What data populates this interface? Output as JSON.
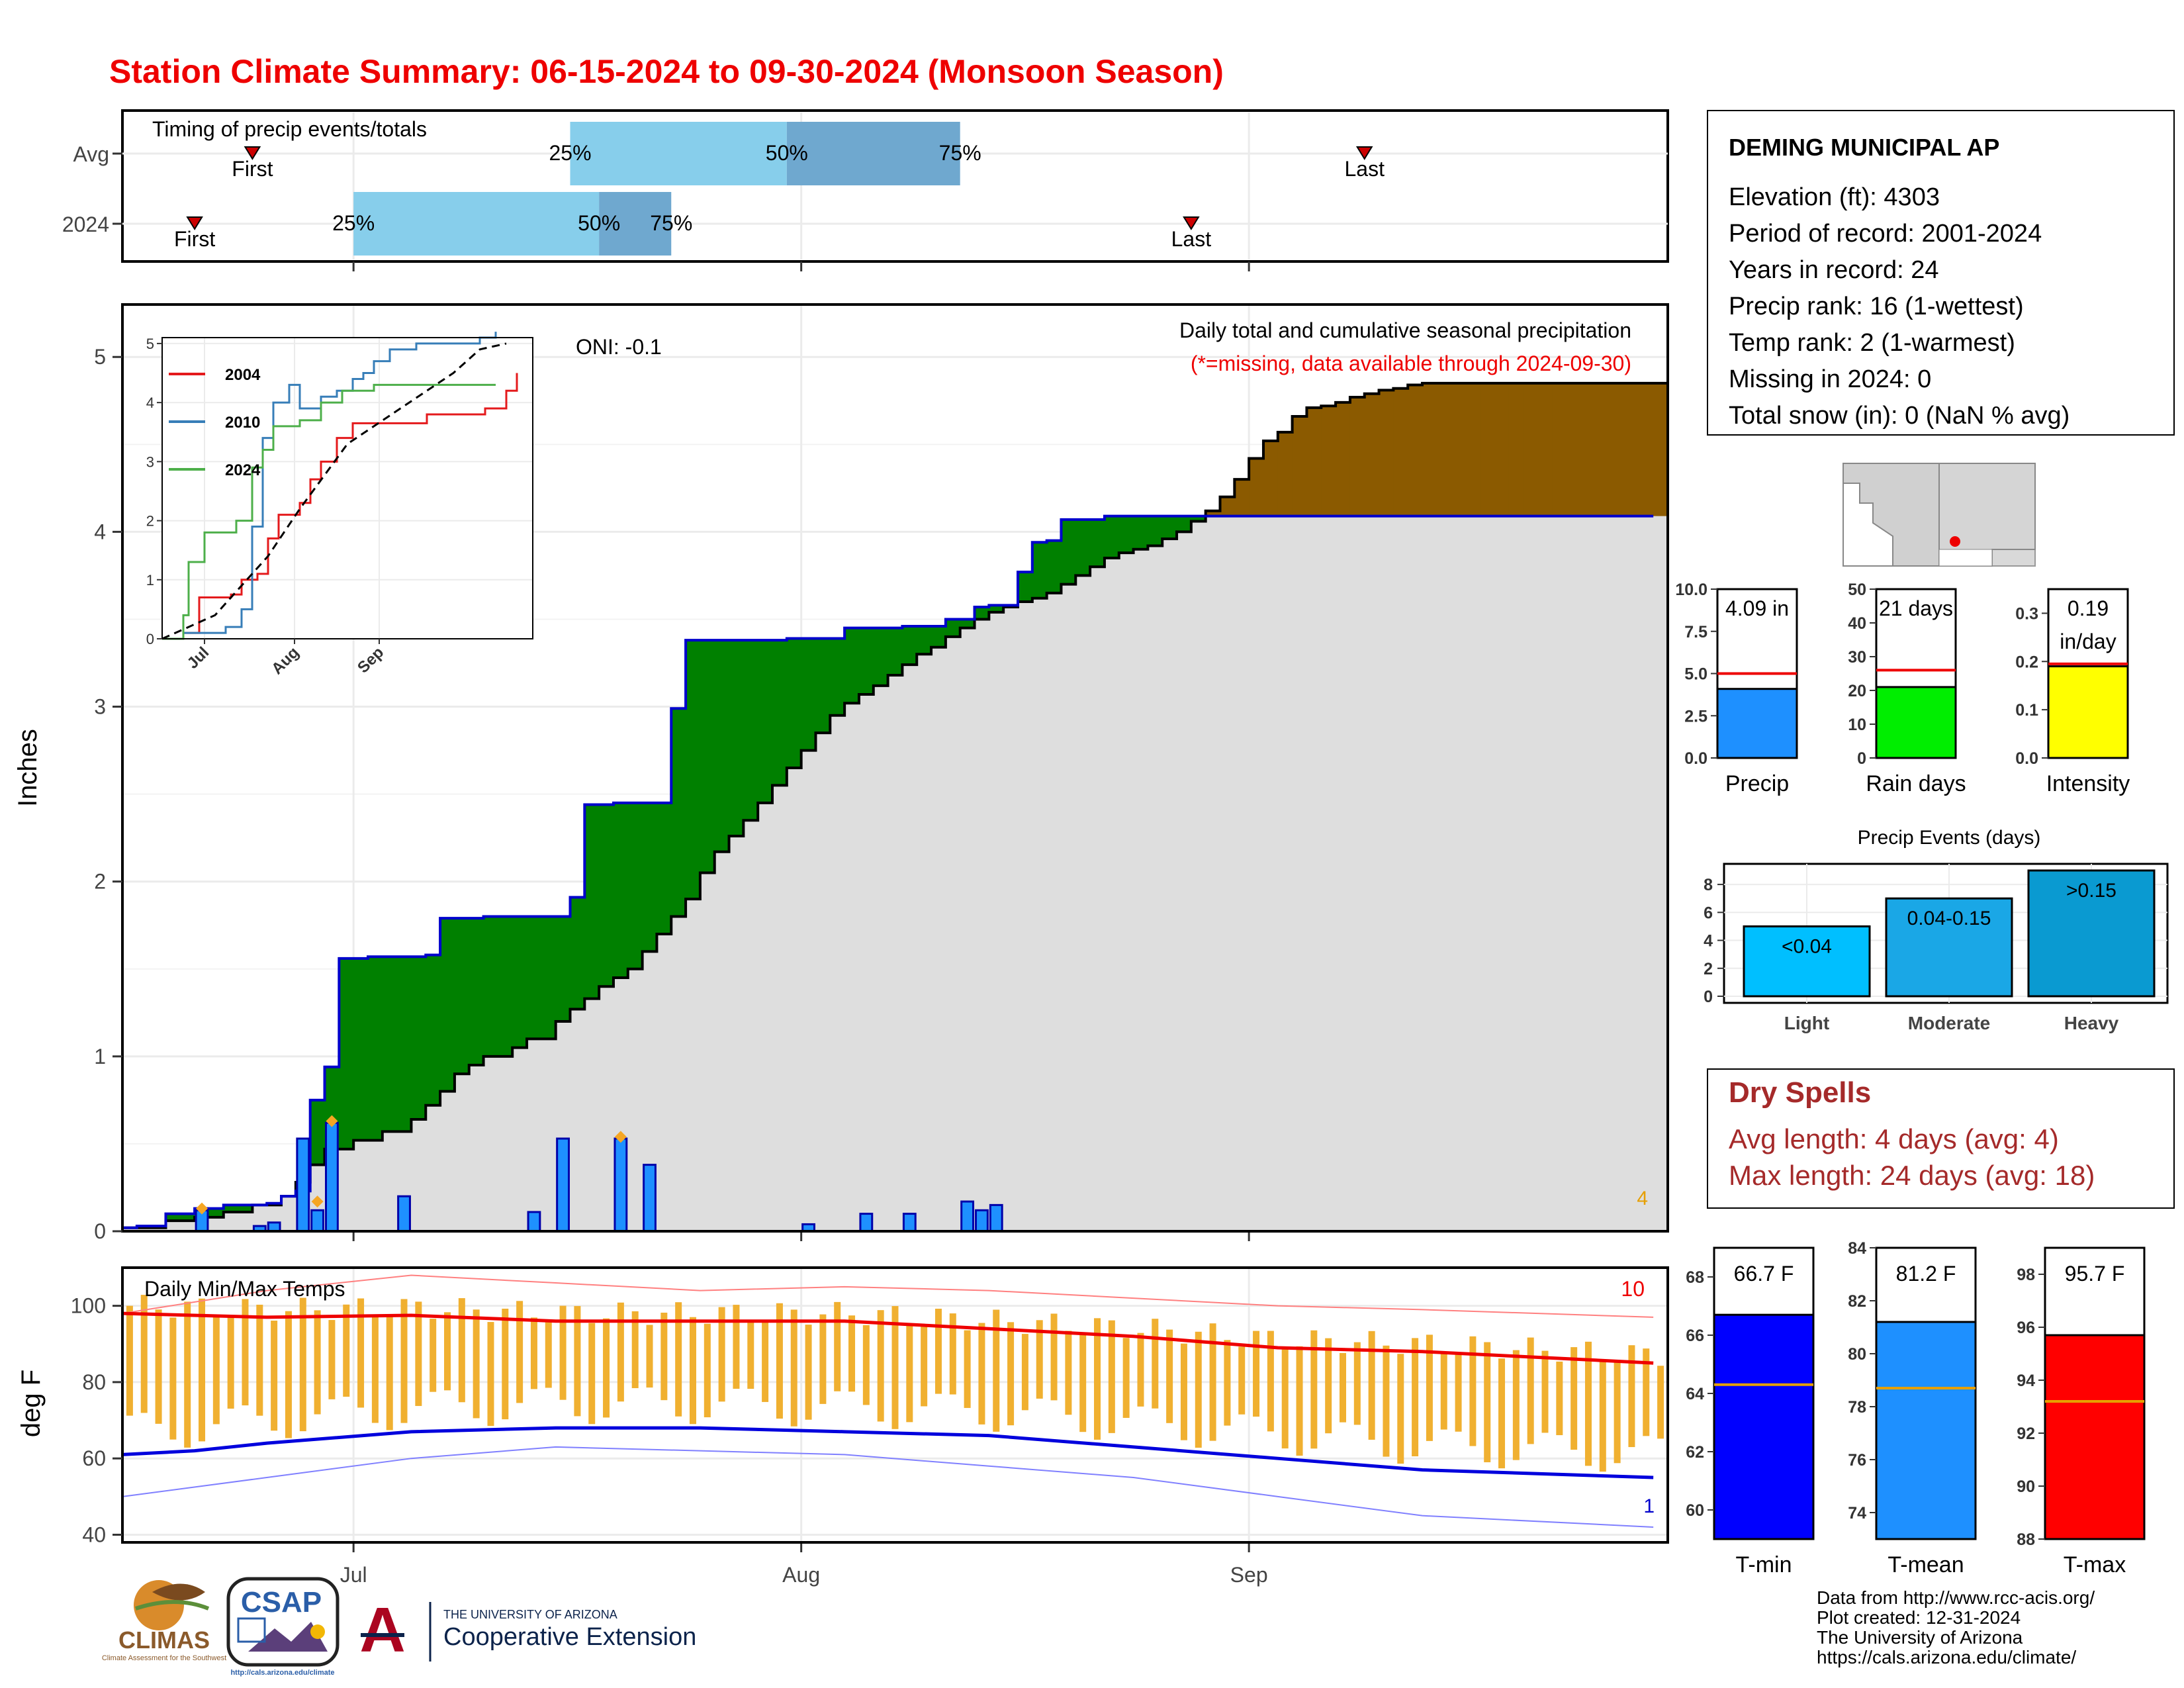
{
  "title": "Station Climate Summary: 06-15-2024 to 09-30-2024 (Monsoon Season)",
  "month_labels": [
    "Jul",
    "Aug",
    "Sep"
  ],
  "timing": {
    "label": "Timing of precip events/totals",
    "rows": [
      {
        "name": "Avg",
        "first_day": 9,
        "p25_day": 31,
        "p50_day": 46,
        "p75_day": 58,
        "last_day": 86
      },
      {
        "name": "2024",
        "first_day": 5,
        "p25_day": 16,
        "p50_day": 33,
        "p75_day": 38,
        "last_day": 74
      }
    ],
    "first_label": "First",
    "last_label": "Last",
    "p25_label": "25%",
    "p50_label": "50%",
    "p75_label": "75%"
  },
  "precip": {
    "ylabel": "Inches",
    "y_ticks": [
      "0",
      "1",
      "2",
      "3",
      "4",
      "5"
    ],
    "ylim": [
      0,
      5.3
    ],
    "header_line1": "Daily total and cumulative seasonal precipitation",
    "header_line2": "(*=missing, data available through 2024-09-30)",
    "oni": "ONI: -0.1",
    "corner_count": "4",
    "cumulative_2024": [
      [
        0,
        0.02
      ],
      [
        1,
        0.03
      ],
      [
        3,
        0.1
      ],
      [
        5,
        0.13
      ],
      [
        7,
        0.15
      ],
      [
        10,
        0.16
      ],
      [
        11,
        0.2
      ],
      [
        12,
        0.23
      ],
      [
        13,
        0.75
      ],
      [
        14,
        0.94
      ],
      [
        15,
        1.56
      ],
      [
        17,
        1.57
      ],
      [
        21,
        1.58
      ],
      [
        22,
        1.79
      ],
      [
        25,
        1.8
      ],
      [
        28,
        1.8
      ],
      [
        31,
        1.91
      ],
      [
        32,
        2.44
      ],
      [
        34,
        2.45
      ],
      [
        36,
        2.45
      ],
      [
        38,
        2.99
      ],
      [
        39,
        3.38
      ],
      [
        46,
        3.39
      ],
      [
        48,
        3.39
      ],
      [
        50,
        3.45
      ],
      [
        54,
        3.46
      ],
      [
        57,
        3.5
      ],
      [
        59,
        3.57
      ],
      [
        60,
        3.58
      ],
      [
        61,
        3.58
      ],
      [
        62,
        3.77
      ],
      [
        63,
        3.94
      ],
      [
        64,
        3.95
      ],
      [
        65,
        4.07
      ],
      [
        68,
        4.09
      ],
      [
        73,
        4.09
      ],
      [
        84,
        4.09
      ]
    ],
    "cumulative_avg": [
      [
        0,
        0.02
      ],
      [
        3,
        0.06
      ],
      [
        5,
        0.08
      ],
      [
        7,
        0.11
      ],
      [
        9,
        0.15
      ],
      [
        11,
        0.2
      ],
      [
        12,
        0.28
      ],
      [
        13,
        0.38
      ],
      [
        14,
        0.47
      ],
      [
        16,
        0.52
      ],
      [
        18,
        0.57
      ],
      [
        20,
        0.64
      ],
      [
        21,
        0.72
      ],
      [
        22,
        0.8
      ],
      [
        23,
        0.9
      ],
      [
        24,
        0.95
      ],
      [
        25,
        1.0
      ],
      [
        27,
        1.05
      ],
      [
        28,
        1.1
      ],
      [
        30,
        1.2
      ],
      [
        31,
        1.27
      ],
      [
        32,
        1.33
      ],
      [
        33,
        1.4
      ],
      [
        34,
        1.45
      ],
      [
        35,
        1.5
      ],
      [
        36,
        1.6
      ],
      [
        37,
        1.7
      ],
      [
        38,
        1.8
      ],
      [
        39,
        1.9
      ],
      [
        40,
        2.05
      ],
      [
        41,
        2.17
      ],
      [
        42,
        2.26
      ],
      [
        43,
        2.35
      ],
      [
        44,
        2.45
      ],
      [
        45,
        2.55
      ],
      [
        46,
        2.65
      ],
      [
        47,
        2.75
      ],
      [
        48,
        2.85
      ],
      [
        49,
        2.95
      ],
      [
        50,
        3.02
      ],
      [
        51,
        3.07
      ],
      [
        52,
        3.12
      ],
      [
        53,
        3.18
      ],
      [
        54,
        3.24
      ],
      [
        55,
        3.3
      ],
      [
        56,
        3.34
      ],
      [
        57,
        3.4
      ],
      [
        58,
        3.45
      ],
      [
        59,
        3.5
      ],
      [
        60,
        3.54
      ],
      [
        61,
        3.57
      ],
      [
        62,
        3.6
      ],
      [
        63,
        3.62
      ],
      [
        64,
        3.65
      ],
      [
        65,
        3.7
      ],
      [
        66,
        3.75
      ],
      [
        67,
        3.8
      ],
      [
        68,
        3.85
      ],
      [
        69,
        3.88
      ],
      [
        70,
        3.9
      ],
      [
        71,
        3.92
      ],
      [
        72,
        3.96
      ],
      [
        73,
        4.0
      ],
      [
        74,
        4.06
      ],
      [
        75,
        4.12
      ],
      [
        76,
        4.2
      ],
      [
        77,
        4.3
      ],
      [
        78,
        4.42
      ],
      [
        79,
        4.52
      ],
      [
        80,
        4.57
      ],
      [
        81,
        4.66
      ],
      [
        82,
        4.71
      ],
      [
        83,
        4.72
      ],
      [
        84,
        4.74
      ],
      [
        85,
        4.77
      ],
      [
        86,
        4.79
      ],
      [
        87,
        4.81
      ],
      [
        88,
        4.82
      ],
      [
        89,
        4.84
      ],
      [
        90,
        4.85
      ]
    ],
    "daily_2024": [
      [
        5,
        0.12
      ],
      [
        9,
        0.03
      ],
      [
        10,
        0.05
      ],
      [
        12,
        0.53
      ],
      [
        13,
        0.12
      ],
      [
        14,
        0.62
      ],
      [
        19,
        0.2
      ],
      [
        28,
        0.11
      ],
      [
        30,
        0.53
      ],
      [
        34,
        0.53
      ],
      [
        36,
        0.38
      ],
      [
        47,
        0.04
      ],
      [
        51,
        0.1
      ],
      [
        54,
        0.1
      ],
      [
        58,
        0.17
      ],
      [
        59,
        0.12
      ],
      [
        60,
        0.15
      ]
    ],
    "missing_diamonds": [
      [
        5,
        0.13
      ],
      [
        13,
        0.17
      ],
      [
        14,
        0.63
      ],
      [
        34,
        0.54
      ]
    ]
  },
  "inset": {
    "y_ticks": [
      "0",
      "1",
      "2",
      "3",
      "4",
      "5"
    ],
    "x_labels": [
      "Jul",
      "Aug",
      "Sep"
    ],
    "series": [
      {
        "name": "2004",
        "color": "#e41a1c",
        "points": [
          [
            0,
            0
          ],
          [
            4,
            0.1
          ],
          [
            7,
            0.7
          ],
          [
            13,
            0.75
          ],
          [
            15,
            1.0
          ],
          [
            18,
            1.1
          ],
          [
            20,
            1.7
          ],
          [
            22,
            2.1
          ],
          [
            26,
            2.3
          ],
          [
            28,
            2.7
          ],
          [
            30,
            3.0
          ],
          [
            33,
            3.4
          ],
          [
            36,
            3.65
          ],
          [
            50,
            3.8
          ],
          [
            61,
            3.9
          ],
          [
            65,
            4.2
          ],
          [
            67,
            4.5
          ]
        ]
      },
      {
        "name": "2010",
        "color": "#377eb8",
        "points": [
          [
            0,
            0
          ],
          [
            4,
            0.1
          ],
          [
            12,
            0.2
          ],
          [
            15,
            0.5
          ],
          [
            17,
            1.9
          ],
          [
            19,
            3.4
          ],
          [
            21,
            4.0
          ],
          [
            24,
            4.3
          ],
          [
            26,
            3.9
          ],
          [
            30,
            4.1
          ],
          [
            33,
            4.2
          ],
          [
            36,
            4.4
          ],
          [
            38,
            4.5
          ],
          [
            40,
            4.7
          ],
          [
            43,
            4.9
          ],
          [
            48,
            5.0
          ],
          [
            60,
            5.1
          ],
          [
            63,
            5.2
          ]
        ]
      },
      {
        "name": "2024",
        "color": "#4daf4a",
        "points": [
          [
            0,
            0
          ],
          [
            4,
            0.4
          ],
          [
            5,
            1.3
          ],
          [
            8,
            1.8
          ],
          [
            14,
            2.0
          ],
          [
            17,
            2.9
          ],
          [
            19,
            3.2
          ],
          [
            21,
            3.6
          ],
          [
            26,
            3.7
          ],
          [
            30,
            4.0
          ],
          [
            34,
            4.2
          ],
          [
            40,
            4.3
          ],
          [
            63,
            4.3
          ]
        ]
      }
    ],
    "avg_points": [
      [
        0,
        0
      ],
      [
        10,
        0.4
      ],
      [
        20,
        1.4
      ],
      [
        26,
        2.2
      ],
      [
        35,
        3.3
      ],
      [
        45,
        3.9
      ],
      [
        55,
        4.5
      ],
      [
        60,
        4.9
      ],
      [
        65,
        5.0
      ]
    ]
  },
  "station": {
    "name": "DEMING MUNICIPAL AP",
    "lines": [
      "Elevation (ft): 4303",
      "Period of record: 2001-2024",
      "Years in record: 24",
      "Precip rank: 16 (1-wettest)",
      "Temp rank: 2 (1-warmest)",
      "Missing in 2024: 0",
      "Total snow (in): 0 (NaN % avg)"
    ]
  },
  "mini_bars": [
    {
      "label": "Precip",
      "value": 4.09,
      "avg": 5.0,
      "display": "4.09 in",
      "display2": "",
      "color": "#1e90ff",
      "ylim": [
        0,
        10
      ],
      "ticks": [
        "0.0",
        "2.5",
        "5.0",
        "7.5",
        "10.0"
      ]
    },
    {
      "label": "Rain days",
      "value": 21,
      "avg": 26,
      "display": "21 days",
      "display2": "",
      "color": "#00ee00",
      "ylim": [
        0,
        50
      ],
      "ticks": [
        "0",
        "10",
        "20",
        "30",
        "40",
        "50"
      ]
    },
    {
      "label": "Intensity",
      "value": 0.19,
      "avg": 0.195,
      "display": "0.19",
      "display2": "in/day",
      "color": "#ffff00",
      "ylim": [
        0,
        0.35
      ],
      "ticks": [
        "0.0",
        "0.1",
        "0.2",
        "0.3"
      ]
    }
  ],
  "events": {
    "title": "Precip Events (days)",
    "y_ticks": [
      "0",
      "2",
      "4",
      "6",
      "8"
    ],
    "ylim": [
      0,
      9
    ],
    "bars": [
      {
        "name": "Light",
        "value": 5,
        "label": "<0.04",
        "color": "#00bfff"
      },
      {
        "name": "Moderate",
        "value": 7,
        "label": "0.04-0.15",
        "color": "#1aa7e6"
      },
      {
        "name": "Heavy",
        "value": 9,
        "label": ">0.15",
        "color": "#0a9ad1"
      }
    ]
  },
  "dry_spells": {
    "title": "Dry Spells",
    "avg": "Avg length: 4 days (avg: 4)",
    "max": "Max length: 24 days (avg: 18)"
  },
  "temps": {
    "label": "Daily Min/Max Temps",
    "ylabel": "deg F",
    "y_ticks": [
      "40",
      "60",
      "80",
      "100"
    ],
    "ylim": [
      38,
      110
    ],
    "count_top": "10",
    "count_bottom": "1",
    "max_avg": [
      [
        0,
        98
      ],
      [
        10,
        97
      ],
      [
        20,
        97.5
      ],
      [
        30,
        96
      ],
      [
        40,
        96
      ],
      [
        50,
        96
      ],
      [
        60,
        94
      ],
      [
        70,
        92
      ],
      [
        80,
        89
      ],
      [
        90,
        88
      ],
      [
        106,
        85
      ]
    ],
    "min_avg": [
      [
        0,
        61
      ],
      [
        5,
        62
      ],
      [
        10,
        64
      ],
      [
        20,
        67
      ],
      [
        30,
        68
      ],
      [
        40,
        68
      ],
      [
        50,
        67
      ],
      [
        60,
        66
      ],
      [
        70,
        63
      ],
      [
        80,
        60
      ],
      [
        90,
        57
      ],
      [
        106,
        55
      ]
    ],
    "rec_max": [
      [
        0,
        98
      ],
      [
        10,
        104
      ],
      [
        20,
        108
      ],
      [
        30,
        106
      ],
      [
        40,
        104
      ],
      [
        50,
        105
      ],
      [
        60,
        104
      ],
      [
        70,
        102
      ],
      [
        80,
        100
      ],
      [
        90,
        99
      ],
      [
        106,
        97
      ]
    ],
    "rec_min": [
      [
        0,
        50
      ],
      [
        10,
        55
      ],
      [
        20,
        60
      ],
      [
        30,
        63
      ],
      [
        40,
        62
      ],
      [
        50,
        61
      ],
      [
        60,
        58
      ],
      [
        70,
        55
      ],
      [
        80,
        50
      ],
      [
        90,
        45
      ],
      [
        106,
        42
      ]
    ]
  },
  "temp_bars": [
    {
      "label": "T-min",
      "value": 66.7,
      "avg": 64.3,
      "display": "66.7 F",
      "color": "#0000ff",
      "ylim": [
        59,
        69
      ],
      "ticks": [
        "60",
        "62",
        "64",
        "66",
        "68"
      ]
    },
    {
      "label": "T-mean",
      "value": 81.2,
      "avg": 78.7,
      "display": "81.2 F",
      "color": "#1e90ff",
      "ylim": [
        73,
        84
      ],
      "ticks": [
        "74",
        "76",
        "78",
        "80",
        "82",
        "84"
      ]
    },
    {
      "label": "T-max",
      "value": 95.7,
      "avg": 93.2,
      "display": "95.7 F",
      "color": "#ff0000",
      "ylim": [
        88,
        99
      ],
      "ticks": [
        "88",
        "90",
        "92",
        "94",
        "96",
        "98"
      ]
    }
  ],
  "footer": {
    "lines": [
      "Data from http://www.rcc-acis.org/",
      "Plot created: 12-31-2024",
      "The University of Arizona",
      "https://cals.arizona.edu/climate/"
    ],
    "logo_climas": "CLIMAS",
    "logo_climas_sub": "Climate Assessment for the Southwest",
    "logo_csap": "CSAP",
    "logo_csap_sub": "http://cals.arizona.edu/climate",
    "logo_ua_line1": "THE UNIVERSITY OF ARIZONA",
    "logo_ua_line2": "Cooperative Extension"
  }
}
